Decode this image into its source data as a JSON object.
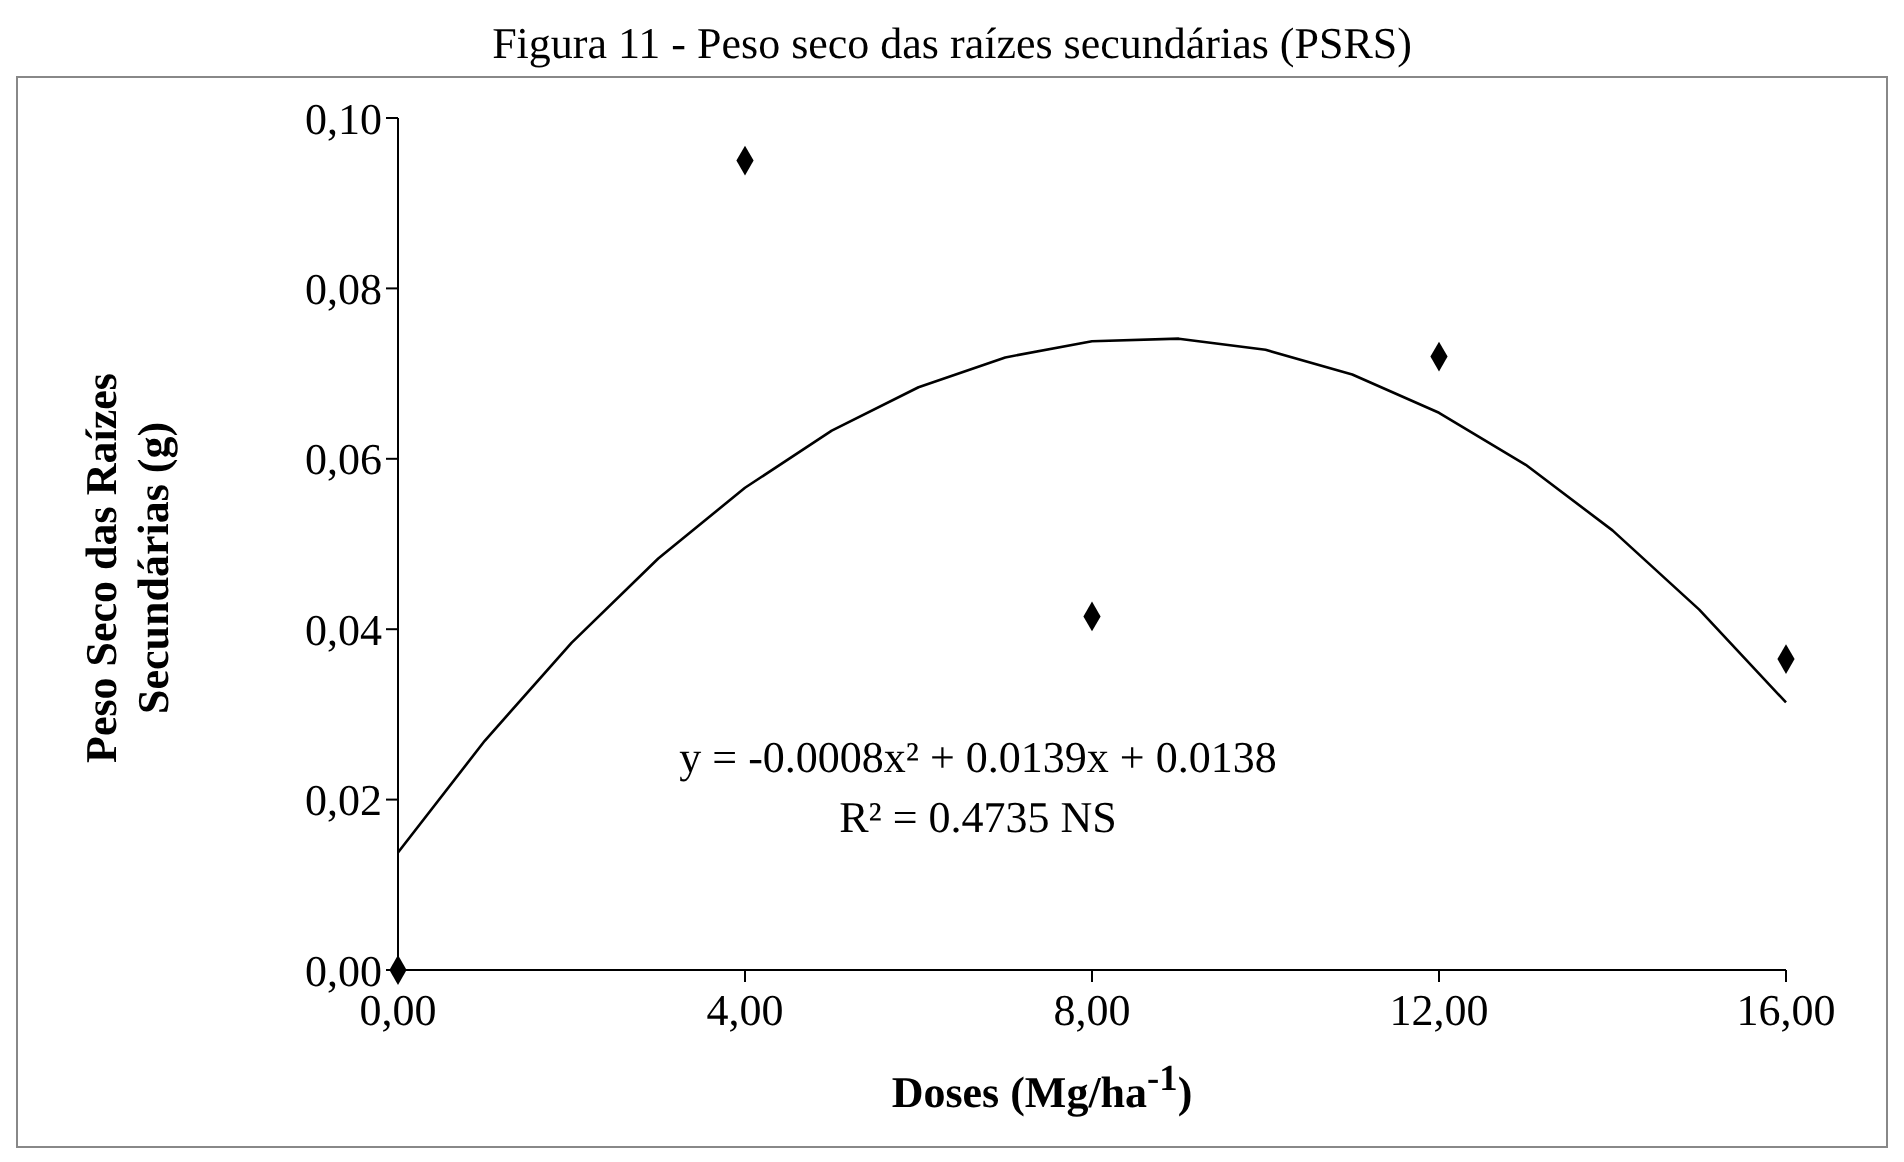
{
  "chart_data": {
    "type": "scatter",
    "title": "Figura 11 - Peso seco das raízes secundárias (PSRS)",
    "xlabel": "Doses (Mg/ha$^{-1}$)",
    "ylabel": "Peso Seco das Raízes Secundárias (g)",
    "series": [
      {
        "color": "#000000",
        "marker": "diamond",
        "x": [
          0,
          4,
          8,
          12,
          16
        ],
        "values": [
          0,
          0.095,
          0.0415,
          0.072,
          0.0365
        ]
      },
      {
        "type": "line",
        "color": "#000000",
        "marker": "none",
        "line_style": "solid",
        "x": [
          0,
          1,
          2,
          3,
          4,
          5,
          6,
          7,
          8,
          9,
          10,
          11,
          12,
          13,
          14,
          15,
          16
        ],
        "values": [
          0.0138,
          0.0269,
          0.0384,
          0.0483,
          0.0566,
          0.0633,
          0.0684,
          0.0719,
          0.0738,
          0.0741,
          0.0728,
          0.0699,
          0.0654,
          0.0593,
          0.0516,
          0.0423,
          0.0314
        ]
      }
    ],
    "xlim": [
      0,
      16
    ],
    "xticks": [
      {
        "value": 0,
        "label": "0,00"
      },
      {
        "value": 4,
        "label": "4,00"
      },
      {
        "value": 8,
        "label": "8,00"
      },
      {
        "value": 12,
        "label": "12,00"
      },
      {
        "value": 16,
        "label": "16,00"
      }
    ],
    "ylim": [
      0,
      0.1
    ],
    "yticks": [
      {
        "value": 0,
        "label": "0,00"
      },
      {
        "value": 0.02,
        "label": "0,02"
      },
      {
        "value": 0.04,
        "label": "0,04"
      },
      {
        "value": 0.06,
        "label": "0,06"
      },
      {
        "value": 0.08,
        "label": "0,08"
      },
      {
        "value": 0.1,
        "label": "0,10"
      }
    ],
    "grid": false,
    "legend": false,
    "annotations": [
      "y = -0.0008x² + 0.0139x + 0.0138",
      "R² = 0.4735  NS"
    ]
  }
}
